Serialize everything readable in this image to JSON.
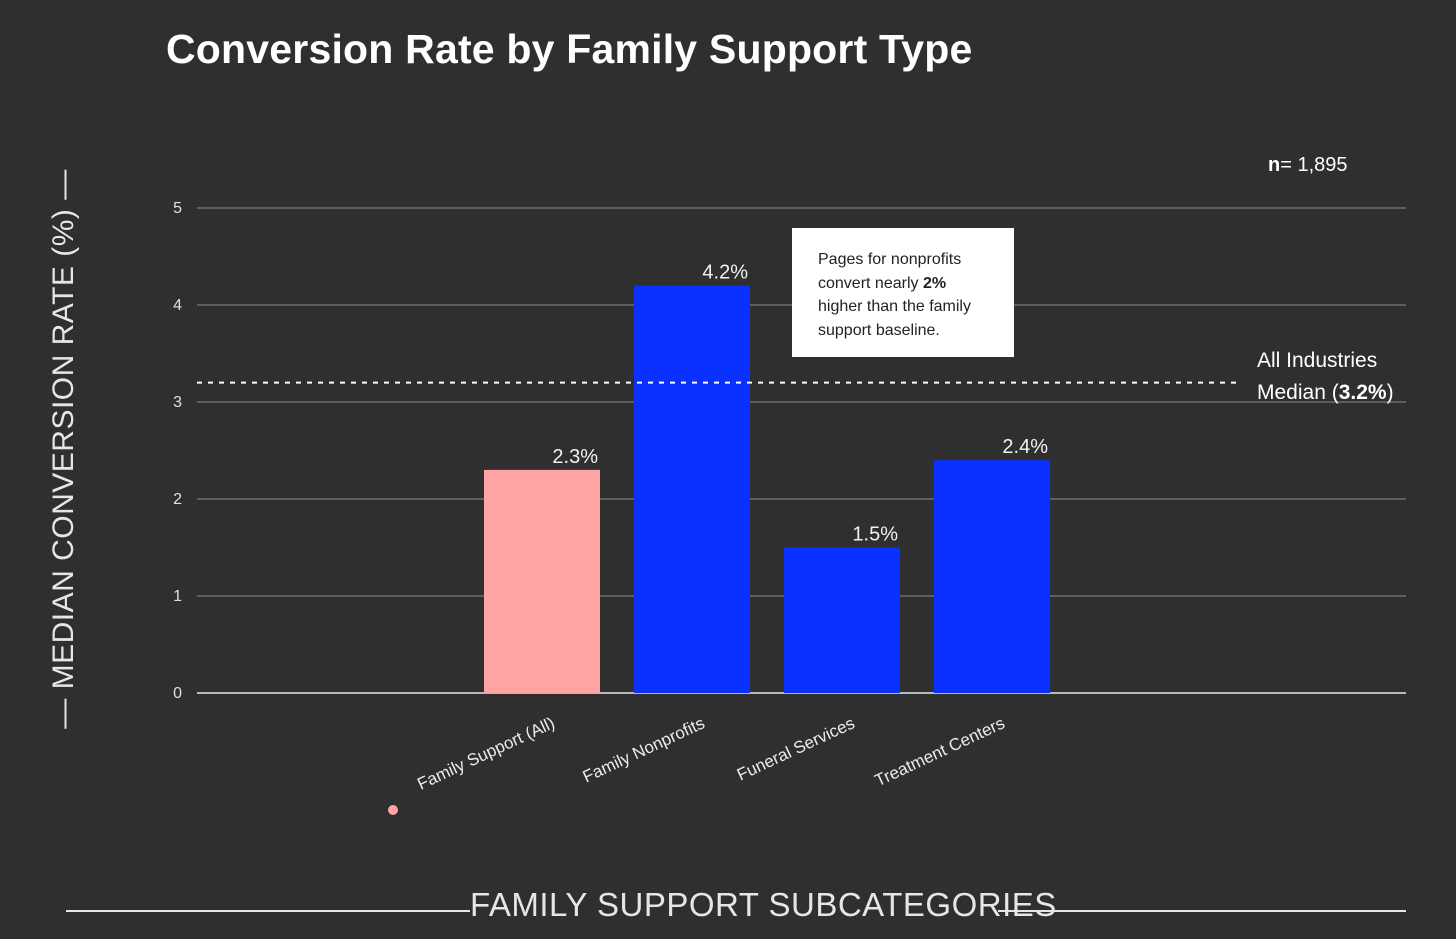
{
  "chart_data": {
    "type": "bar",
    "title": "Conversion Rate by Family Support Type",
    "xlabel": "FAMILY SUPPORT SUBCATEGORIES",
    "ylabel": "MEDIAN CONVERSION RATE (%)",
    "ylim": [
      0,
      5
    ],
    "yticks": [
      0,
      1,
      2,
      3,
      4,
      5
    ],
    "grid": true,
    "categories": [
      "Family Support (All)",
      "Family Nonprofits",
      "Funeral Services",
      "Treatment Centers"
    ],
    "values": [
      2.3,
      4.2,
      1.5,
      2.4
    ],
    "value_labels": [
      "2.3%",
      "4.2%",
      "1.5%",
      "2.4%"
    ],
    "bar_colors": [
      "#ffa3a3",
      "#0a31ff",
      "#0a31ff",
      "#0a31ff"
    ],
    "reference_line": {
      "value": 3.2,
      "label_line1": "All Industries",
      "label_line2_prefix": "Median (",
      "label_line2_value": "3.2%",
      "label_line2_suffix": ")"
    },
    "sample_size": {
      "prefix": "n",
      "value": "= 1,895"
    },
    "annotation": {
      "line1": "Pages for nonprofits",
      "line2_prefix": "convert nearly ",
      "line2_bold": "2%",
      "line3": "higher than the family",
      "line4": "support baseline."
    }
  },
  "colors": {
    "background": "#2f2f2f",
    "accent_blue": "#0a31ff",
    "baseline_pink": "#ffa3a3",
    "text": "#ffffff"
  }
}
